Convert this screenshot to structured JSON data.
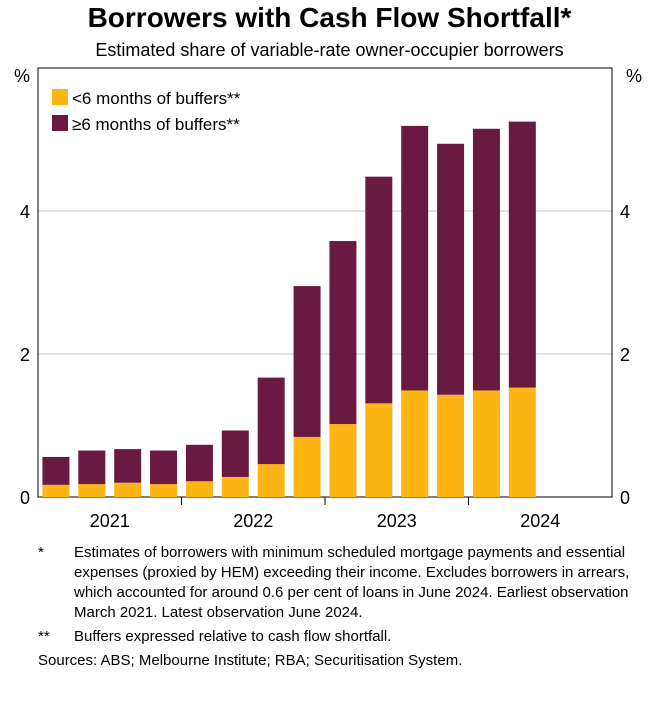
{
  "chart_data": {
    "type": "bar",
    "stacked": true,
    "title": "Borrowers with Cash Flow Shortfall*",
    "subtitle": "Estimated share of variable-rate owner-occupier borrowers",
    "ylabel_left": "%",
    "ylabel_right": "%",
    "ylim": [
      0,
      6
    ],
    "yticks": [
      0,
      2,
      4
    ],
    "xtick_labels": [
      "2021",
      "2022",
      "2023",
      "2024"
    ],
    "categories": [
      "Mar-21",
      "Jun-21",
      "Sep-21",
      "Dec-21",
      "Mar-22",
      "Jun-22",
      "Sep-22",
      "Dec-22",
      "Mar-23",
      "Jun-23",
      "Sep-23",
      "Dec-23",
      "Mar-24",
      "Jun-24"
    ],
    "series": [
      {
        "name": "<6 months of buffers**",
        "color": "#FDB515",
        "values": [
          0.17,
          0.18,
          0.2,
          0.18,
          0.22,
          0.28,
          0.46,
          0.84,
          1.02,
          1.31,
          1.49,
          1.43,
          1.49,
          1.53
        ]
      },
      {
        "name": "≥6 months of buffers**",
        "color": "#6A1A41",
        "values": [
          0.39,
          0.47,
          0.47,
          0.47,
          0.51,
          0.65,
          1.21,
          2.11,
          2.56,
          3.17,
          3.7,
          3.51,
          3.66,
          3.72
        ]
      }
    ],
    "legend": "top-left",
    "grid": true
  },
  "notes": [
    {
      "mark": "*",
      "text": "Estimates of borrowers with minimum scheduled mortgage payments and essential expenses (proxied by HEM) exceeding their income. Excludes borrowers in arrears, which accounted for around 0.6 per cent of loans in June 2024. Earliest observation March 2021. Latest observation June 2024."
    },
    {
      "mark": "**",
      "text": "Buffers expressed relative to cash flow shortfall."
    }
  ],
  "sources": "Sources: ABS; Melbourne Institute; RBA; Securitisation System."
}
